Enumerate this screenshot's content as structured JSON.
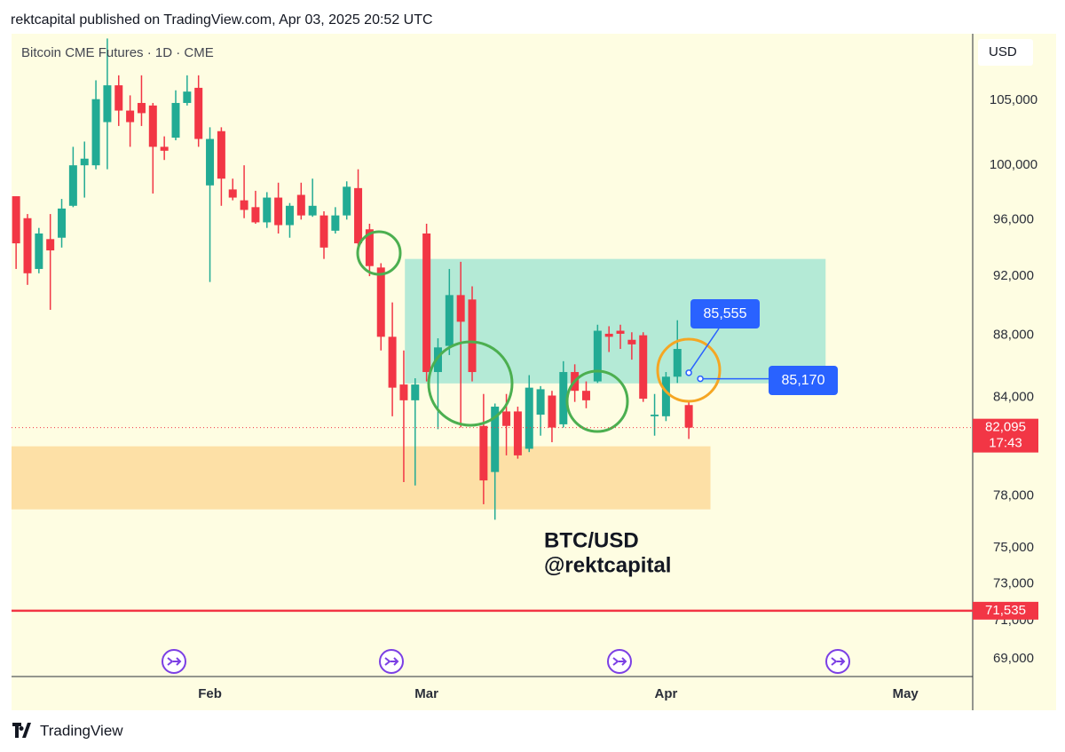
{
  "header": {
    "publisher": "rektcapital published on TradingView.com, Apr 03, 2025 20:52 UTC"
  },
  "chart_data": {
    "type": "candlestick",
    "title": "Bitcoin CME Futures · 1D · CME",
    "currency": "USD",
    "log_scale": true,
    "up_color": "#22ab94",
    "down_color": "#f23645",
    "open": [
      97700,
      96100,
      92500,
      94600,
      94700,
      97000,
      100000,
      100000,
      103300,
      106200,
      104200,
      104800,
      104600,
      101400,
      102100,
      104800,
      106000,
      98500,
      102600,
      98200,
      97400,
      96900,
      95800,
      97600,
      95600,
      97800,
      96300,
      96300,
      95200,
      96300,
      98300,
      95300,
      92600,
      87900,
      84800,
      83800,
      95000,
      85600,
      87300,
      90700,
      90400,
      82200,
      79400,
      83100,
      83100,
      80800,
      82900,
      84100,
      82300,
      85600,
      84400,
      85000,
      88100,
      88300,
      87700,
      88000,
      82800,
      82800,
      85300,
      83500
    ],
    "high": [
      97700,
      96400,
      95400,
      96400,
      97500,
      101400,
      101800,
      106600,
      110000,
      107000,
      105400,
      107000,
      104800,
      102200,
      105800,
      107000,
      107000,
      102900,
      102900,
      99000,
      100000,
      98100,
      98000,
      98700,
      97200,
      98700,
      99000,
      96600,
      96900,
      98800,
      99700,
      95700,
      92900,
      90200,
      87000,
      85200,
      95700,
      87800,
      92500,
      93000,
      91300,
      84200,
      83600,
      84200,
      83400,
      85400,
      84700,
      84400,
      86300,
      86100,
      85000,
      88700,
      88600,
      88700,
      88200,
      88200,
      84200,
      85600,
      89000,
      83800
    ],
    "low": [
      92500,
      91400,
      92200,
      89700,
      94000,
      96900,
      97600,
      99700,
      99700,
      103000,
      101400,
      103000,
      97900,
      100400,
      101900,
      104600,
      101400,
      91600,
      97000,
      97400,
      96100,
      95700,
      95400,
      95000,
      94700,
      96000,
      96200,
      93200,
      95000,
      96000,
      94000,
      92000,
      87000,
      82800,
      78800,
      78600,
      85000,
      82000,
      86700,
      82100,
      85000,
      77500,
      76600,
      80400,
      80200,
      80600,
      81600,
      81200,
      82100,
      83700,
      83300,
      84900,
      86900,
      87100,
      86400,
      83700,
      81600,
      82500,
      84900,
      81400
    ],
    "close": [
      94300,
      92200,
      95000,
      93800,
      96800,
      100000,
      100500,
      105100,
      106200,
      104200,
      103300,
      104000,
      101400,
      101100,
      104800,
      105700,
      102000,
      102000,
      99000,
      97600,
      96700,
      95800,
      97600,
      95600,
      97000,
      96300,
      97000,
      94000,
      96300,
      98400,
      94300,
      92700,
      87900,
      84600,
      83800,
      84800,
      85600,
      87200,
      90700,
      88900,
      85600,
      78900,
      83400,
      82200,
      80400,
      84600,
      84500,
      82100,
      85600,
      84400,
      83800,
      88300,
      87900,
      88100,
      87400,
      83900,
      82900,
      85300,
      87100,
      82095
    ],
    "xlim": [
      -0.4,
      83.9
    ],
    "xticks": [
      {
        "value": 17,
        "label": "Feb"
      },
      {
        "value": 36,
        "label": "Mar"
      },
      {
        "value": 57,
        "label": "Apr"
      },
      {
        "value": 78,
        "label": "May"
      }
    ],
    "ylim": [
      68080,
      110400
    ],
    "yticks": [
      {
        "value": 69000,
        "label": "69,000"
      },
      {
        "value": 71000,
        "label": "71,000"
      },
      {
        "value": 73000,
        "label": "73,000"
      },
      {
        "value": 75000,
        "label": "75,000"
      },
      {
        "value": 78000,
        "label": "78,000"
      },
      {
        "value": 84000,
        "label": "84,000"
      },
      {
        "value": 88000,
        "label": "88,000"
      },
      {
        "value": 92000,
        "label": "92,000"
      },
      {
        "value": 96000,
        "label": "96,000"
      },
      {
        "value": 100000,
        "label": "100,000"
      },
      {
        "value": 105000,
        "label": "105,000"
      }
    ],
    "zones": [
      {
        "y0": 84870,
        "y1": 93200,
        "x0": 34.1,
        "x1": 71,
        "color": "#b4ead6"
      },
      {
        "y0": 77200,
        "y1": 80950,
        "x0": -0.4,
        "x1": 60.9,
        "color": "#fde0a6"
      }
    ],
    "last_price": {
      "value": 82095,
      "label": "82,095",
      "countdown": "17:43",
      "color": "#f23645"
    },
    "levels": [
      {
        "value": 71535,
        "label": "71,535",
        "color": "#f23645"
      }
    ],
    "callouts": [
      {
        "value": 85555,
        "label": "85,555",
        "color": "#2962ff"
      },
      {
        "value": 85170,
        "label": "85,170",
        "color": "#2962ff"
      }
    ],
    "watermark": [
      "BTC/USD",
      "@rektcapital"
    ]
  },
  "footer": {
    "brand": "TradingView"
  }
}
